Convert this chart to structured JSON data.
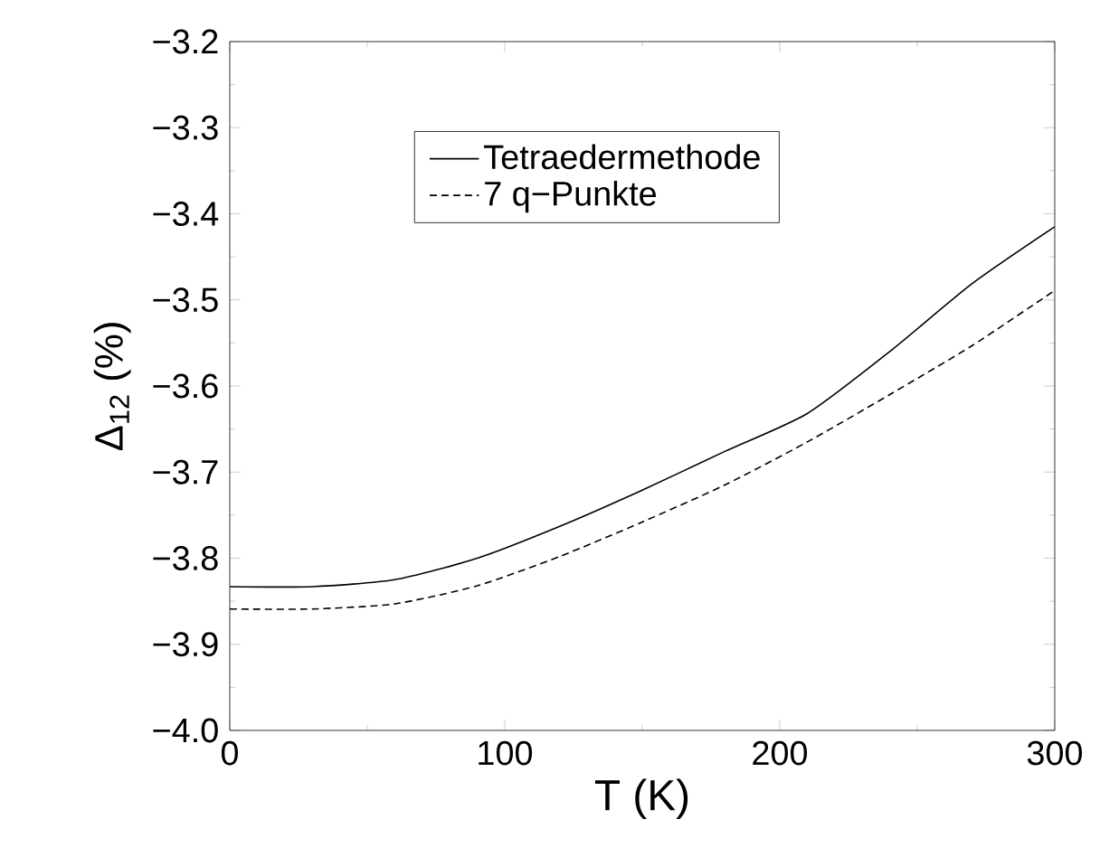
{
  "chart_data": {
    "type": "line",
    "xlabel": "T (K)",
    "ylabel": "Δ$_{12}$  (%)",
    "x": [
      0,
      30,
      60,
      90,
      120,
      150,
      180,
      210,
      240,
      270,
      300
    ],
    "series": [
      {
        "name": "Tetraedermethode",
        "color": "#000000",
        "line_style": "solid",
        "values": [
          -3.833,
          -3.833,
          -3.825,
          -3.8,
          -3.763,
          -3.721,
          -3.676,
          -3.632,
          -3.56,
          -3.481,
          -3.415
        ]
      },
      {
        "name": "7 q−Punkte",
        "color": "#000000",
        "line_style": "dashed",
        "values": [
          -3.859,
          -3.859,
          -3.853,
          -3.832,
          -3.798,
          -3.758,
          -3.715,
          -3.665,
          -3.61,
          -3.553,
          -3.489
        ]
      }
    ],
    "xlim": [
      0,
      300
    ],
    "xticks": [
      0,
      100,
      200,
      300
    ],
    "ylim": [
      -4.0,
      -3.2
    ],
    "yticks": [
      {
        "value": -4.0,
        "label": "−4.0"
      },
      {
        "value": -3.9,
        "label": "−3.9"
      },
      {
        "value": -3.8,
        "label": "−3.8"
      },
      {
        "value": -3.7,
        "label": "−3.7"
      },
      {
        "value": -3.6,
        "label": "−3.6"
      },
      {
        "value": -3.5,
        "label": "−3.5"
      },
      {
        "value": -3.4,
        "label": "−3.4"
      },
      {
        "value": -3.3,
        "label": "−3.3"
      },
      {
        "value": -3.2,
        "label": "−3.2"
      }
    ],
    "legend": "top",
    "grid": false
  }
}
